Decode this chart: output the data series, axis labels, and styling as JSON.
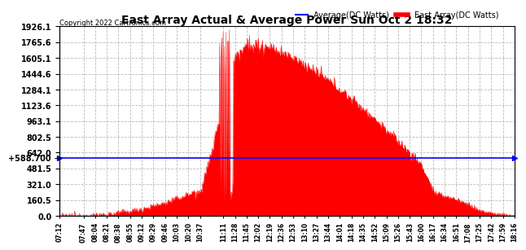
{
  "title": "East Array Actual & Average Power Sun Oct 2 18:32",
  "copyright": "Copyright 2022 Cartronics.com",
  "legend_avg": "Average(DC Watts)",
  "legend_east": "East Array(DC Watts)",
  "avg_value": 588.7,
  "avg_label": "+588.700",
  "ymax": 1926.1,
  "ymin": 0.0,
  "yticks_right": [
    0.0,
    160.5,
    321.0,
    481.5,
    642.0,
    802.5,
    963.1,
    1123.6,
    1284.1,
    1444.6,
    1605.1,
    1765.6,
    1926.1
  ],
  "background_color": "#ffffff",
  "fill_color": "#ff0000",
  "avg_color": "#0000ff",
  "grid_color": "#bbbbbb",
  "title_color": "#000000",
  "copyright_color": "#000000",
  "xtick_labels": [
    "07:12",
    "07:47",
    "08:04",
    "08:21",
    "08:38",
    "08:55",
    "09:12",
    "09:29",
    "09:46",
    "10:03",
    "10:20",
    "10:37",
    "11:11",
    "11:28",
    "11:45",
    "12:02",
    "12:19",
    "12:36",
    "12:53",
    "13:10",
    "13:27",
    "13:44",
    "14:01",
    "14:18",
    "14:35",
    "14:52",
    "15:09",
    "15:26",
    "15:43",
    "16:00",
    "16:17",
    "16:34",
    "16:51",
    "17:08",
    "17:25",
    "17:42",
    "17:59",
    "18:16"
  ],
  "x_start_min": 432,
  "x_end_min": 1096
}
